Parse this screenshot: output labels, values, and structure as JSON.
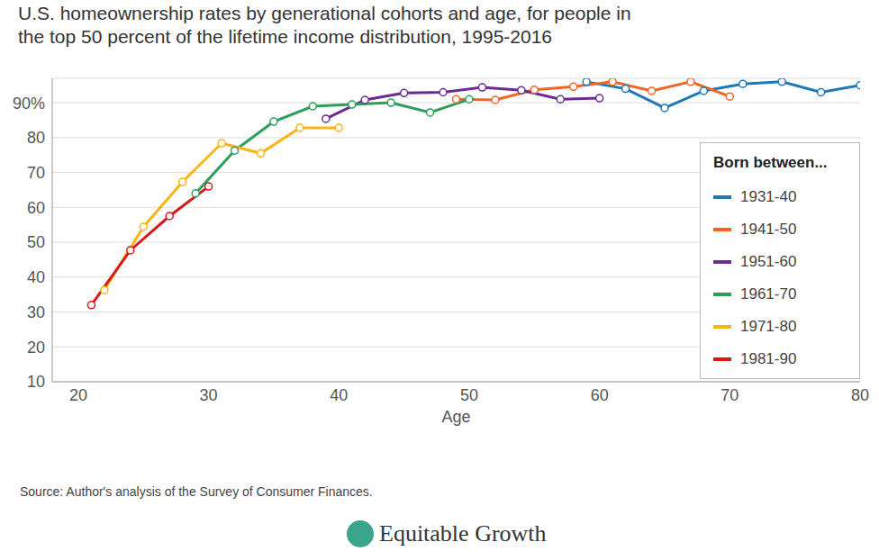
{
  "chart_data": {
    "type": "line",
    "title": "U.S. homeownership rates by generational cohorts and age, for people in the top 50 percent of the lifetime income distribution, 1995-2016",
    "x_label": "Age",
    "legend_title": "Born between...",
    "source": "Source: Author's analysis of the Survey of Consumer Finances.",
    "logo": "Equitable Growth",
    "xlim": [
      18,
      80
    ],
    "xticks": [
      20,
      30,
      40,
      50,
      60,
      70,
      80
    ],
    "ylim": [
      10,
      97
    ],
    "yticks": [
      10,
      20,
      30,
      40,
      50,
      60,
      70,
      80,
      {
        "value": 90,
        "label": "90%"
      }
    ],
    "grid": true,
    "legend": "right",
    "marker": "circle",
    "series": [
      {
        "name": "1931-40",
        "color": "#1f78b4",
        "x": [
          59,
          62,
          65,
          68,
          71,
          74,
          77,
          80
        ],
        "values": [
          96,
          94,
          88.5,
          93.4,
          95.4,
          96,
          93,
          95
        ]
      },
      {
        "name": "1941-50",
        "color": "#f26522",
        "x": [
          49,
          52,
          55,
          58,
          61,
          64,
          67,
          70
        ],
        "values": [
          91,
          90.8,
          93.7,
          94.6,
          96,
          93.4,
          96,
          91.8
        ]
      },
      {
        "name": "1951-60",
        "color": "#6a2c91",
        "x": [
          39,
          42,
          45,
          48,
          51,
          54,
          57,
          60
        ],
        "values": [
          85.4,
          90.8,
          92.8,
          93,
          94.4,
          93.6,
          91,
          91.3
        ]
      },
      {
        "name": "1961-70",
        "color": "#2e9e5b",
        "x": [
          29,
          32,
          35,
          38,
          41,
          44,
          47,
          50
        ],
        "values": [
          64,
          76.3,
          84.6,
          89,
          89.5,
          90,
          87.2,
          91
        ]
      },
      {
        "name": "1971-80",
        "color": "#fbb416",
        "x": [
          22,
          25,
          28,
          31,
          34,
          37,
          40
        ],
        "values": [
          36.3,
          54.4,
          67.3,
          78.4,
          75.5,
          82.8,
          82.8
        ]
      },
      {
        "name": "1981-90",
        "color": "#d7191c",
        "x": [
          21,
          24,
          27,
          30
        ],
        "values": [
          32,
          47.7,
          57.5,
          66
        ]
      }
    ]
  }
}
